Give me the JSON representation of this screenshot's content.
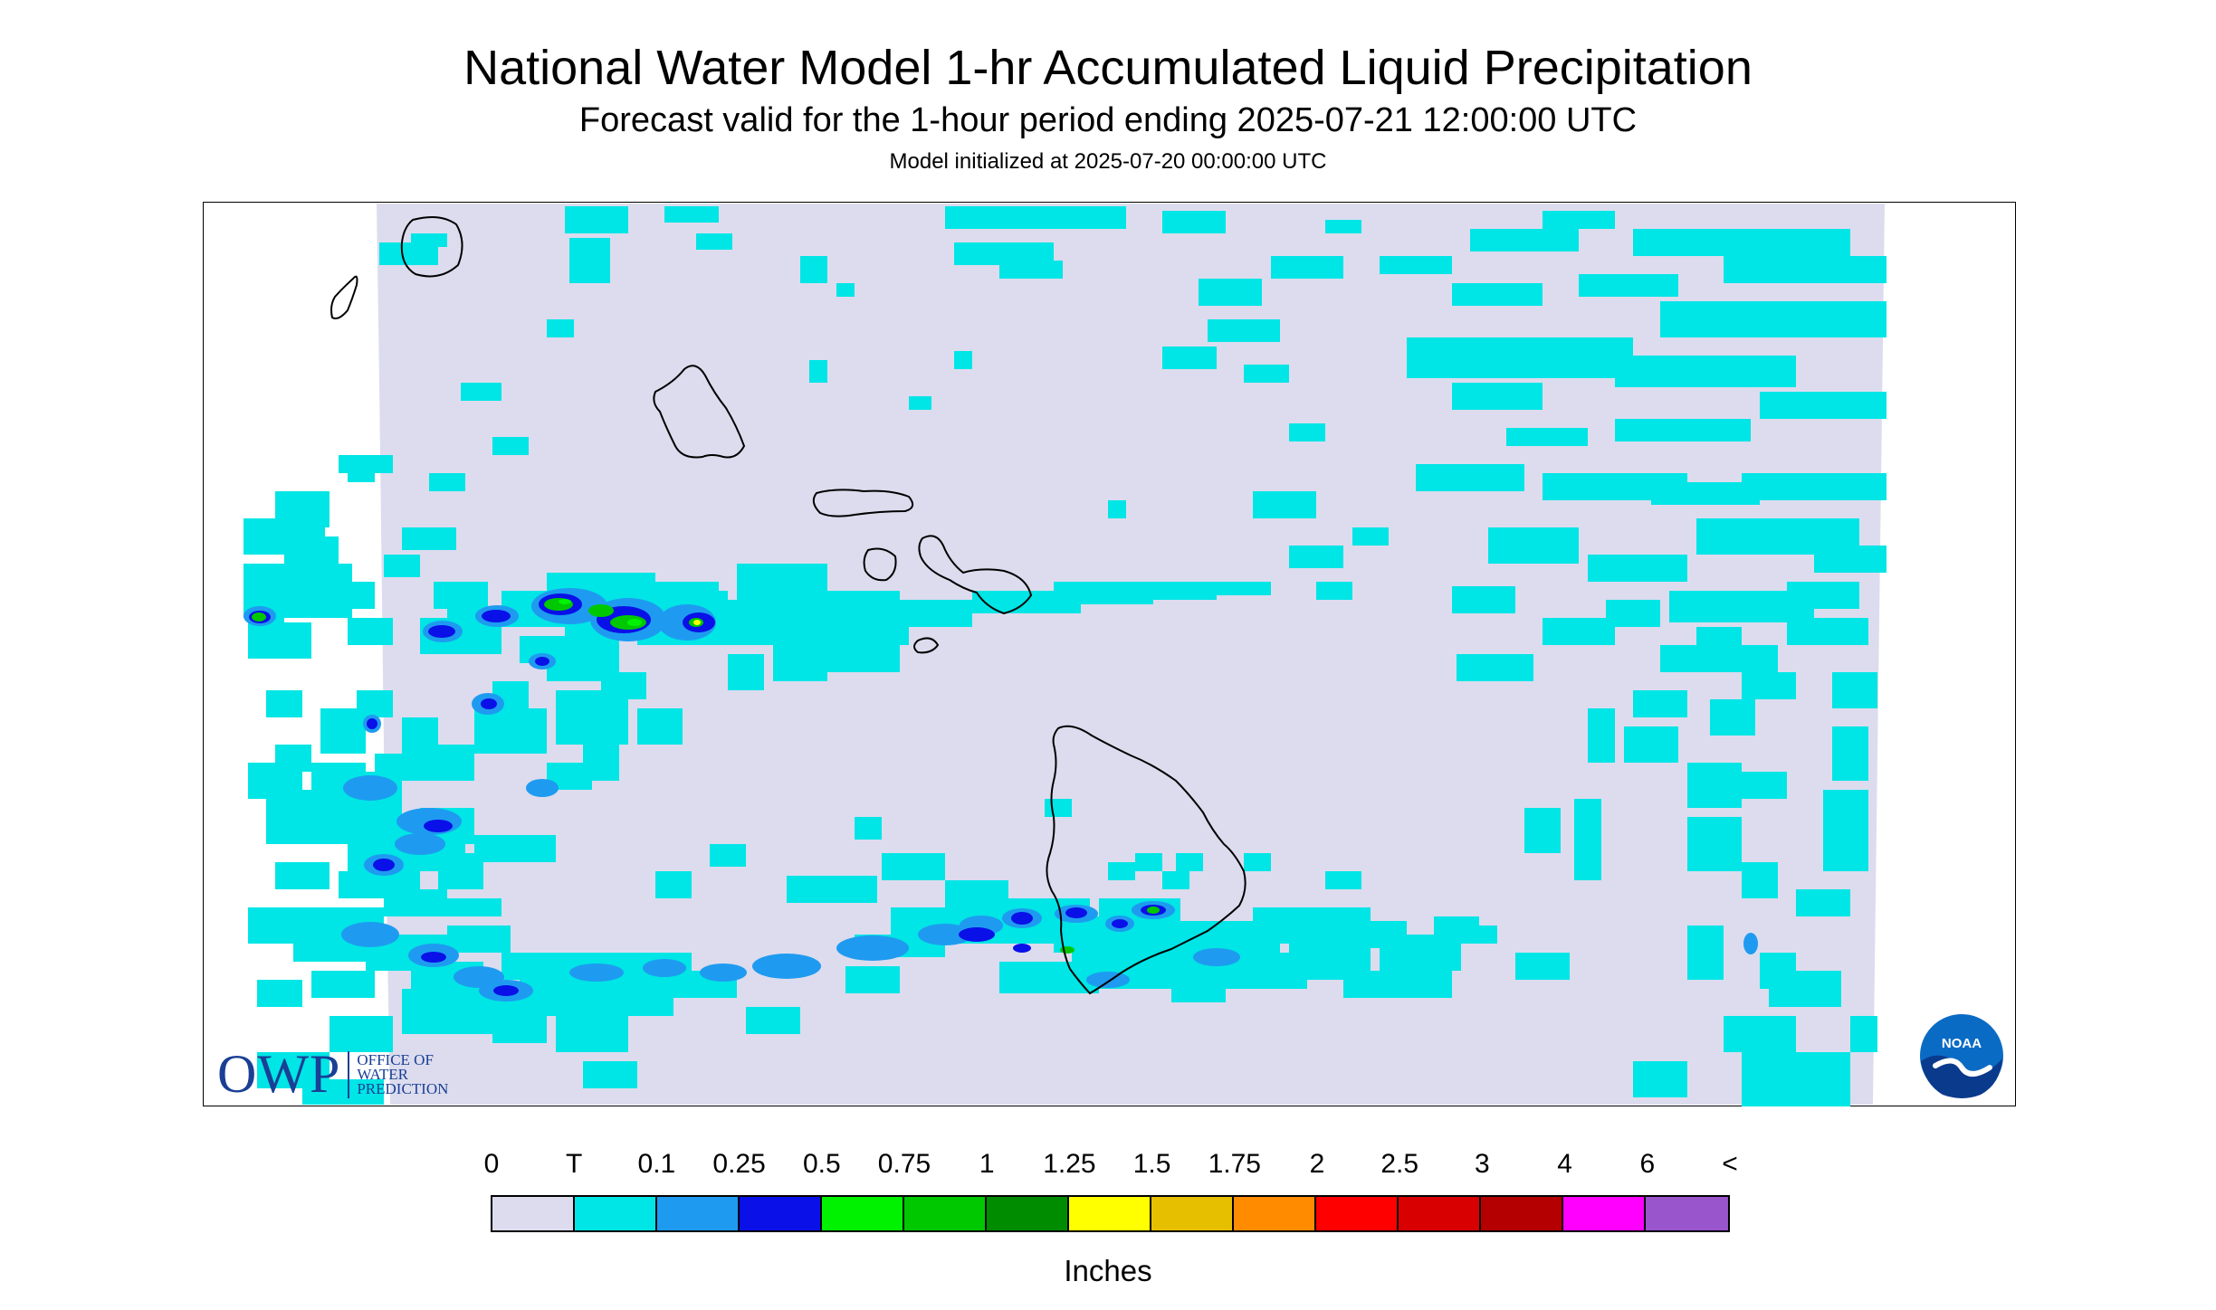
{
  "header": {
    "title": "National Water Model 1-hr Accumulated Liquid Precipitation",
    "subtitle": "Forecast valid for the 1-hour period ending 2025-07-21 12:00:00 UTC",
    "init": "Model initialized at 2025-07-20 00:00:00 UTC"
  },
  "logos": {
    "owp_word": "OWP",
    "owp_line1": "OFFICE OF",
    "owp_line2": "WATER",
    "owp_line3": "PREDICTION",
    "noaa_word": "NOAA"
  },
  "legend": {
    "labels": [
      "0",
      "T",
      "0.1",
      "0.25",
      "0.5",
      "0.75",
      "1",
      "1.25",
      "1.5",
      "1.75",
      "2",
      "2.5",
      "3",
      "4",
      "6",
      "<"
    ],
    "colors": [
      "#dcdcee",
      "#00e5e5",
      "#1e9bf0",
      "#0a10e8",
      "#00f200",
      "#00c800",
      "#008c00",
      "#ffff00",
      "#e6c000",
      "#ff8c00",
      "#ff0000",
      "#d80000",
      "#b40000",
      "#ff00ff",
      "#9955cc"
    ],
    "units": "Inches"
  },
  "map": {
    "background_color": "#dcdcee",
    "coastline_color": "#000000",
    "islands": [
      "Kauai",
      "Niihau",
      "Oahu",
      "Molokai",
      "Lanai",
      "Maui",
      "Kahoolawe",
      "Hawaii"
    ]
  }
}
